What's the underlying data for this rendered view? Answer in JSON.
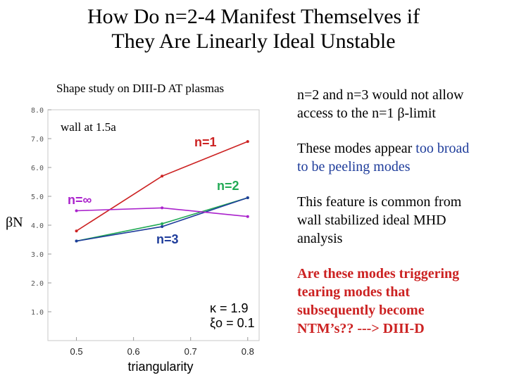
{
  "title": {
    "line1": "How Do n=2-4 Manifest Themselves if",
    "line2": "They Are Linearly Ideal Unstable"
  },
  "caption": "Shape study on DIII-D AT plasmas",
  "chart_data": {
    "type": "line",
    "x": [
      0.5,
      0.65,
      0.8
    ],
    "categories": [
      "0.5",
      "0.6",
      "0.7",
      "0.8"
    ],
    "xlabel": "triangularity",
    "ylabel": "βN",
    "xlim": [
      0.45,
      0.82
    ],
    "ylim": [
      0,
      8
    ],
    "yticks": [
      "1.0",
      "2.0",
      "3.0",
      "4.0",
      "5.0",
      "6.0",
      "7.0",
      "8.0"
    ],
    "grid": false,
    "series": [
      {
        "name": "n=1",
        "color": "#cc2222",
        "values": [
          3.8,
          5.7,
          6.9
        ]
      },
      {
        "name": "n=2",
        "color": "#22aa55",
        "values": [
          3.45,
          4.05,
          4.95
        ]
      },
      {
        "name": "n=3",
        "color": "#1f3d9b",
        "values": [
          3.45,
          3.95,
          4.95
        ]
      },
      {
        "name": "n=∞",
        "color": "#aa22cc",
        "values": [
          4.5,
          4.6,
          4.3
        ]
      }
    ],
    "annotations": {
      "wall": "wall at 1.5a",
      "kappa": "κ = 1.9",
      "xi": "ξo = 0.1"
    }
  },
  "bullets": {
    "b1_line1": "n=2 and n=3 would not allow",
    "b1_line2": "access to the n=1 β-limit",
    "b2_line1_a": "These modes appear ",
    "b2_line1_b": "too broad",
    "b2_line2": "to be peeling modes",
    "b3_line1": "This feature is common from",
    "b3_line2": "wall stabilized ideal MHD",
    "b3_line3": "analysis",
    "b4_line1": "Are these modes triggering",
    "b4_line2": "tearing modes that",
    "b4_line3": "subsequently become",
    "b4_line4": "NTM’s?? ---> DIII-D"
  },
  "colors": {
    "n1": "#cc2222",
    "n2": "#22aa55",
    "n3": "#1f3d9b",
    "ninf": "#aa22cc",
    "text_blue": "#1f3d9b",
    "text_red": "#cc2222"
  }
}
